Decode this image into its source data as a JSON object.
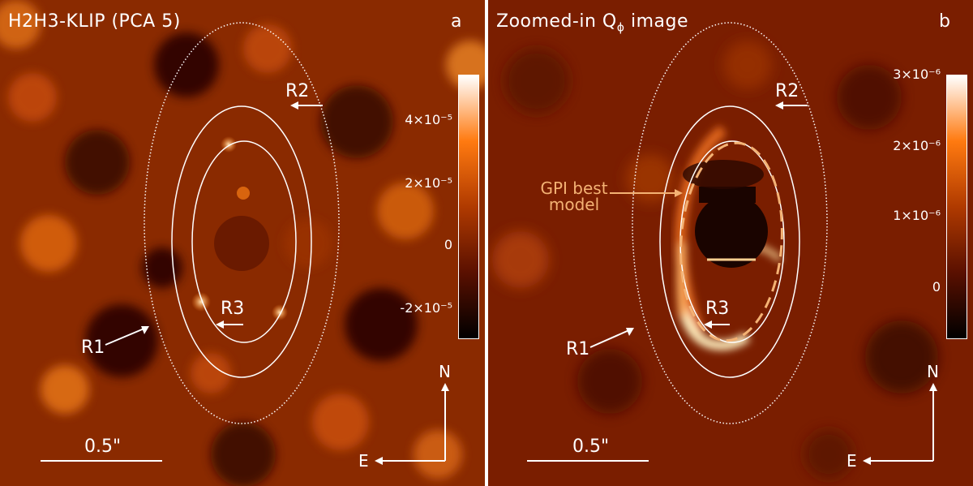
{
  "panels": [
    {
      "title": "H2H3-KLIP (PCA 5)",
      "label": "a",
      "ring_labels": {
        "r1": "R1",
        "r2": "R2",
        "r3": "R3"
      },
      "colorbar_ticks": [
        "4×10⁻⁵",
        "2×10⁻⁵",
        "0",
        "-2×10⁻⁵"
      ],
      "scale_bar": "0.5\"",
      "compass": {
        "north": "N",
        "east": "E"
      }
    },
    {
      "title": "Zoomed-in Q",
      "title_sub": "ϕ",
      "title_tail": " image",
      "label": "b",
      "ring_labels": {
        "r1": "R1",
        "r2": "R2",
        "r3": "R3"
      },
      "colorbar_ticks": [
        "3×10⁻⁶",
        "2×10⁻⁶",
        "1×10⁻⁶",
        "0"
      ],
      "scale_bar": "0.5\"",
      "compass": {
        "north": "N",
        "east": "E"
      },
      "model_label_line1": "GPI best",
      "model_label_line2": "model"
    }
  ],
  "colors": {
    "background_dark": "#1a0400",
    "background_mid": "#8a2a00",
    "highlight": "#ff9a3a",
    "model_ellipse": "#f4b274",
    "overlay": "#ffffff"
  }
}
